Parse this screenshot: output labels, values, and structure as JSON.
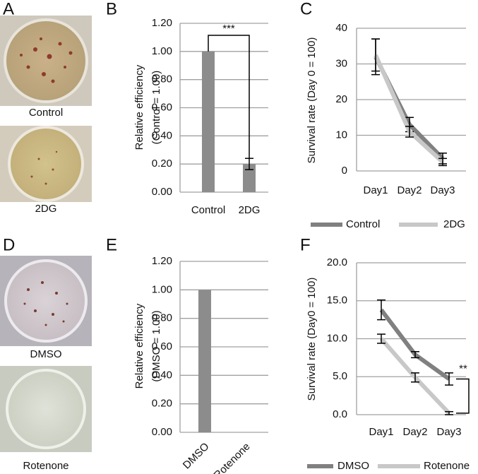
{
  "photos": [
    {
      "label": "A",
      "captions": [
        "Control",
        "2DG"
      ]
    },
    {
      "label": "D",
      "captions": [
        "DMSO",
        "Rotenone"
      ]
    }
  ],
  "chart_data": [
    {
      "type": "bar",
      "label": "B",
      "ylabel": [
        "Relative efficiency",
        "(Control = 1.00)"
      ],
      "categories": [
        "Control",
        "2DG"
      ],
      "values": [
        1.0,
        0.2
      ],
      "errors": [
        0,
        0.04
      ],
      "color": "#8c8c8c",
      "ylim": [
        0,
        1.2
      ],
      "yticks": [
        {
          "value": 0,
          "label": "0.00"
        },
        {
          "value": 0.2,
          "label": "0.20"
        },
        {
          "value": 0.4,
          "label": "0.40"
        },
        {
          "value": 0.6,
          "label": "0.60"
        },
        {
          "value": 0.8,
          "label": "0.80"
        },
        {
          "value": 1.0,
          "label": "1.00"
        },
        {
          "value": 1.2,
          "label": "1.20"
        }
      ],
      "grid": true,
      "annotation": "***"
    },
    {
      "type": "line",
      "label": "C",
      "ylabel": [
        "Survival rate (Day 0 = 100)"
      ],
      "categories": [
        "Day1",
        "Day2",
        "Day3"
      ],
      "series": [
        {
          "name": "Control",
          "color": "#808080",
          "values": [
            32,
            13,
            3.5
          ],
          "errors": [
            5,
            2,
            1.5
          ]
        },
        {
          "name": "2DG",
          "color": "#c8c8c8",
          "values": [
            32.5,
            11,
            2.5
          ],
          "errors": [
            4.5,
            1.5,
            1
          ]
        }
      ],
      "ylim": [
        0,
        40
      ],
      "yticks": [
        0,
        10,
        20,
        30,
        40
      ],
      "grid": true,
      "legend": "bottom"
    },
    {
      "type": "bar",
      "label": "E",
      "ylabel": [
        "Relative efficiency",
        "(DMSO = 1.00)"
      ],
      "categories": [
        "DMSO",
        "Rotenone"
      ],
      "values": [
        1.0,
        0
      ],
      "color": "#8c8c8c",
      "ylim": [
        0,
        1.2
      ],
      "yticks": [
        {
          "value": 0,
          "label": "0.00"
        },
        {
          "value": 0.2,
          "label": "0.20"
        },
        {
          "value": 0.4,
          "label": "0.40"
        },
        {
          "value": 0.6,
          "label": "0.60"
        },
        {
          "value": 0.8,
          "label": "0.80"
        },
        {
          "value": 1.0,
          "label": "1.00"
        },
        {
          "value": 1.2,
          "label": "1.20"
        }
      ],
      "grid": true
    },
    {
      "type": "line",
      "label": "F",
      "ylabel": [
        "Survival rate (Day0 = 100)"
      ],
      "categories": [
        "Day1",
        "Day2",
        "Day3"
      ],
      "series": [
        {
          "name": "DMSO",
          "color": "#808080",
          "values": [
            13.8,
            7.9,
            4.7
          ],
          "errors": [
            1.3,
            0.4,
            0.8
          ]
        },
        {
          "name": "Rotenone",
          "color": "#c8c8c8",
          "values": [
            10,
            4.9,
            0.2
          ],
          "errors": [
            0.6,
            0.6,
            0.2
          ]
        }
      ],
      "ylim": [
        0,
        20
      ],
      "yticks": [
        {
          "value": 0,
          "label": "0.0"
        },
        {
          "value": 5,
          "label": "5.0"
        },
        {
          "value": 10,
          "label": "10.0"
        },
        {
          "value": 15,
          "label": "15.0"
        },
        {
          "value": 20,
          "label": "20.0"
        }
      ],
      "grid": true,
      "legend": "bottom",
      "annotation": "**"
    }
  ]
}
